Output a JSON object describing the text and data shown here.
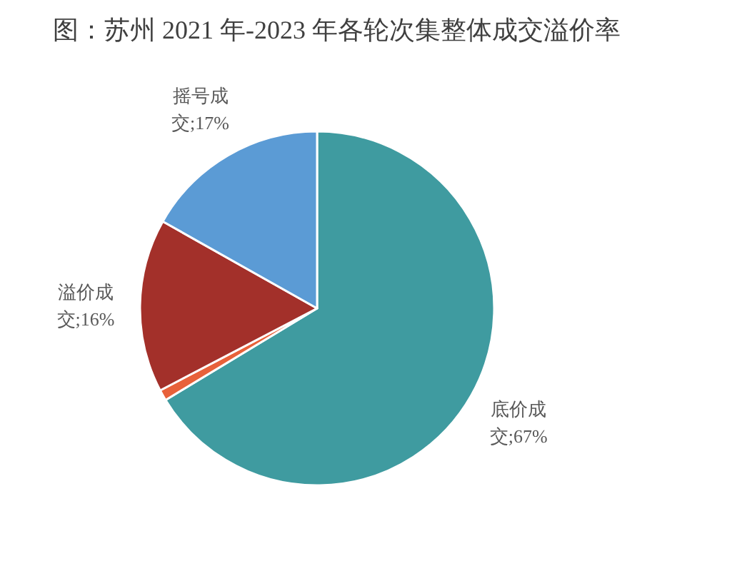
{
  "chart_data": {
    "type": "pie",
    "title": "图：苏州 2021 年-2023 年各轮次集整体成交溢价率",
    "categories": [
      "底价成交",
      null,
      "溢价成交",
      "摇号成交"
    ],
    "values": [
      67,
      1,
      16,
      17
    ],
    "colors": [
      "#3f9ba0",
      "#e8613a",
      "#a3302a",
      "#5b9bd5"
    ],
    "value_labels": [
      "67%",
      null,
      "16%",
      "17%"
    ],
    "legend": false
  }
}
